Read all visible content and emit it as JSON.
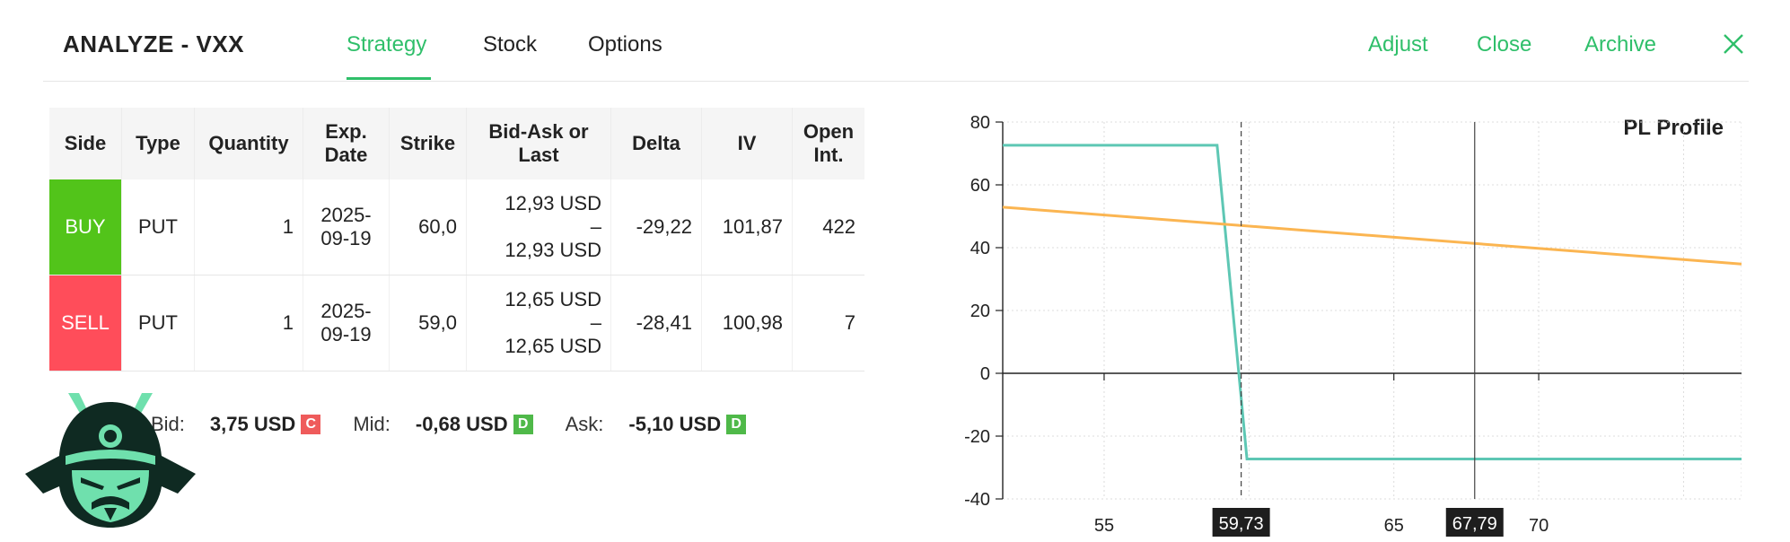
{
  "header": {
    "title": "ANALYZE - VXX",
    "tabs": [
      {
        "label": "Strategy",
        "active": true
      },
      {
        "label": "Stock",
        "active": false
      },
      {
        "label": "Options",
        "active": false
      }
    ],
    "actions": {
      "adjust": "Adjust",
      "close": "Close",
      "archive": "Archive"
    },
    "close_icon": "close-icon",
    "accent_color": "#2fbf6a"
  },
  "legs_table": {
    "columns": [
      "Side",
      "Type",
      "Quantity",
      "Exp. Date",
      "Strike",
      "Bid-Ask or Last",
      "Delta",
      "IV",
      "Open Int."
    ],
    "rows": [
      {
        "side": "BUY",
        "type": "PUT",
        "quantity": "1",
        "exp_date": "2025-09-19",
        "strike": "60,0",
        "bid": "12,93 USD",
        "dash": "–",
        "ask": "12,93 USD",
        "delta": "-29,22",
        "iv": "101,87",
        "open_int": "422"
      },
      {
        "side": "SELL",
        "type": "PUT",
        "quantity": "1",
        "exp_date": "2025-09-19",
        "strike": "59,0",
        "bid": "12,65 USD",
        "dash": "–",
        "ask": "12,65 USD",
        "delta": "-28,41",
        "iv": "100,98",
        "open_int": "7"
      }
    ],
    "buy_color": "#52c41a",
    "sell_color": "#ff4d5a"
  },
  "quote": {
    "bid_label": "Bid:",
    "bid_value": "3,75 USD",
    "bid_badge": "C",
    "mid_label": "Mid:",
    "mid_value": "-0,68 USD",
    "mid_badge": "D",
    "ask_label": "Ask:",
    "ask_value": "-5,10 USD",
    "ask_badge": "D"
  },
  "logo": "samurai-helmet-logo",
  "chart_data": {
    "type": "line",
    "title": "PL Profile",
    "xlim": [
      51.5,
      77.0
    ],
    "ylim": [
      -40,
      80
    ],
    "yticks": [
      80,
      60,
      40,
      20,
      0,
      -20,
      -40
    ],
    "xticks": [
      55,
      65,
      70
    ],
    "grid": true,
    "markers": [
      {
        "label": "59,73",
        "x": 59.73,
        "style": "dashed"
      },
      {
        "label": "67,79",
        "x": 67.79,
        "style": "solid"
      }
    ],
    "series": [
      {
        "color": "#5ec7b4",
        "x": [
          51.5,
          58.9,
          59.93,
          77.0
        ],
        "y": [
          72.6,
          72.6,
          -27.3,
          -27.3
        ]
      },
      {
        "color": "#fbb551",
        "x": [
          51.5,
          77.0
        ],
        "y": [
          52.9,
          34.8
        ]
      }
    ]
  }
}
